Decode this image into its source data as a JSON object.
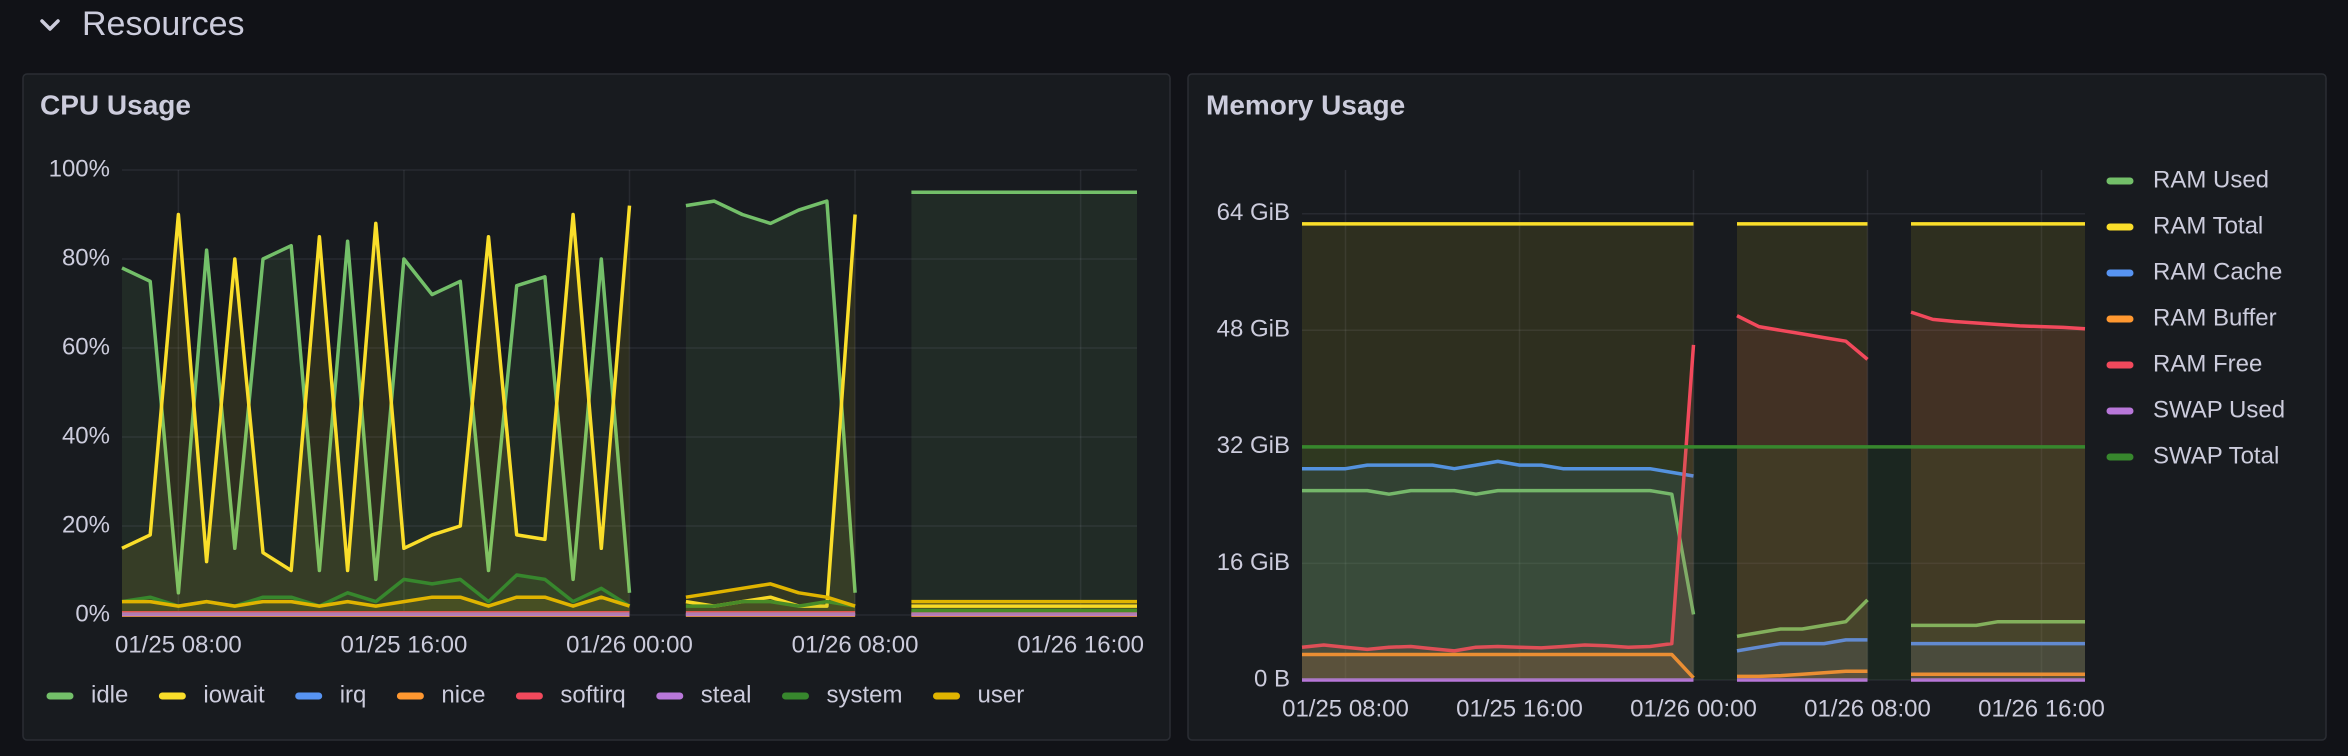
{
  "section": {
    "title": "Resources"
  },
  "chart_data": [
    {
      "type": "line",
      "title": "CPU Usage",
      "legend": "bottom",
      "grid": true,
      "x": [
        "01/25 06:00",
        "01/25 07:00",
        "01/25 08:00",
        "01/25 09:00",
        "01/25 10:00",
        "01/25 11:00",
        "01/25 12:00",
        "01/25 13:00",
        "01/25 14:00",
        "01/25 15:00",
        "01/25 16:00",
        "01/25 17:00",
        "01/25 18:00",
        "01/25 19:00",
        "01/25 20:00",
        "01/25 21:00",
        "01/25 22:00",
        "01/25 23:00",
        "01/26 00:00",
        "01/26 01:00",
        "01/26 02:00",
        "01/26 03:00",
        "01/26 04:00",
        "01/26 05:00",
        "01/26 06:00",
        "01/26 07:00",
        "01/26 08:00",
        "01/26 09:00",
        "01/26 10:00",
        "01/26 11:00",
        "01/26 12:00",
        "01/26 13:00",
        "01/26 14:00",
        "01/26 15:00",
        "01/26 16:00",
        "01/26 17:00",
        "01/26 18:00"
      ],
      "xticks": [
        "01/25 08:00",
        "01/25 16:00",
        "01/26 00:00",
        "01/26 08:00",
        "01/26 16:00"
      ],
      "ylim": [
        0,
        100
      ],
      "yticks": [
        {
          "value": 0,
          "label": "0%"
        },
        {
          "value": 20,
          "label": "20%"
        },
        {
          "value": 40,
          "label": "40%"
        },
        {
          "value": 60,
          "label": "60%"
        },
        {
          "value": 80,
          "label": "80%"
        },
        {
          "value": 100,
          "label": "100%"
        }
      ],
      "series": [
        {
          "name": "idle",
          "color": "#73bf69",
          "values": [
            78,
            75,
            5,
            82,
            15,
            80,
            83,
            10,
            84,
            8,
            80,
            72,
            75,
            10,
            74,
            76,
            8,
            80,
            5,
            null,
            92,
            93,
            90,
            88,
            91,
            93,
            5,
            null,
            95,
            95,
            95,
            95,
            95,
            95,
            95,
            95,
            95
          ]
        },
        {
          "name": "iowait",
          "color": "#fade2a",
          "values": [
            15,
            18,
            90,
            12,
            80,
            14,
            10,
            85,
            10,
            88,
            15,
            18,
            20,
            85,
            18,
            17,
            90,
            15,
            92,
            null,
            3,
            2,
            3,
            4,
            2,
            2,
            90,
            null,
            2,
            2,
            2,
            2,
            2,
            2,
            2,
            2,
            2
          ]
        },
        {
          "name": "irq",
          "color": "#5794f2",
          "values": [
            0,
            0,
            0,
            0,
            0,
            0,
            0,
            0,
            0,
            0,
            0,
            0,
            0,
            0,
            0,
            0,
            0,
            0,
            0,
            null,
            0,
            0,
            0,
            0,
            0,
            0,
            0,
            null,
            0,
            0,
            0,
            0,
            0,
            0,
            0,
            0,
            0
          ]
        },
        {
          "name": "nice",
          "color": "#ff9830",
          "values": [
            0,
            0,
            0,
            0,
            0,
            0,
            0,
            0,
            0,
            0,
            0,
            0,
            0,
            0,
            0,
            0,
            0,
            0,
            0,
            null,
            0,
            0,
            0,
            0,
            0,
            0,
            0,
            null,
            0,
            0,
            0,
            0,
            0,
            0,
            0,
            0,
            0
          ]
        },
        {
          "name": "softirq",
          "color": "#f2495c",
          "values": [
            0.5,
            0.5,
            0.5,
            0.5,
            0.5,
            0.5,
            0.5,
            0.5,
            0.5,
            0.5,
            0.5,
            0.5,
            0.5,
            0.5,
            0.5,
            0.5,
            0.5,
            0.5,
            0.5,
            null,
            0.5,
            0.5,
            0.5,
            0.5,
            0.5,
            0.5,
            0.5,
            null,
            0.5,
            0.5,
            0.5,
            0.5,
            0.5,
            0.5,
            0.5,
            0.5,
            0.5
          ]
        },
        {
          "name": "steal",
          "color": "#b877d9",
          "values": [
            0.2,
            0.2,
            0.2,
            0.2,
            0.2,
            0.2,
            0.2,
            0.2,
            0.2,
            0.2,
            0.2,
            0.2,
            0.2,
            0.2,
            0.2,
            0.2,
            0.2,
            0.2,
            0.2,
            null,
            0.2,
            0.2,
            0.2,
            0.2,
            0.2,
            0.2,
            0.2,
            null,
            0.2,
            0.2,
            0.2,
            0.2,
            0.2,
            0.2,
            0.2,
            0.2,
            0.2
          ]
        },
        {
          "name": "system",
          "color": "#37872d",
          "values": [
            3,
            4,
            2,
            3,
            2,
            4,
            4,
            2,
            5,
            3,
            8,
            7,
            8,
            3,
            9,
            8,
            3,
            6,
            2,
            null,
            2,
            2,
            3,
            3,
            2,
            3,
            2,
            null,
            1,
            1,
            1,
            1,
            1,
            1,
            1,
            1,
            1
          ]
        },
        {
          "name": "user",
          "color": "#e0b400",
          "values": [
            3,
            3,
            2,
            3,
            2,
            3,
            3,
            2,
            3,
            2,
            3,
            4,
            4,
            2,
            4,
            4,
            2,
            4,
            2,
            null,
            4,
            5,
            6,
            7,
            5,
            4,
            2,
            null,
            3,
            3,
            3,
            3,
            3,
            3,
            3,
            3,
            3
          ]
        }
      ]
    },
    {
      "type": "line",
      "title": "Memory Usage",
      "legend": "right",
      "grid": true,
      "x": [
        "01/25 06:00",
        "01/25 07:00",
        "01/25 08:00",
        "01/25 09:00",
        "01/25 10:00",
        "01/25 11:00",
        "01/25 12:00",
        "01/25 13:00",
        "01/25 14:00",
        "01/25 15:00",
        "01/25 16:00",
        "01/25 17:00",
        "01/25 18:00",
        "01/25 19:00",
        "01/25 20:00",
        "01/25 21:00",
        "01/25 22:00",
        "01/25 23:00",
        "01/26 00:00",
        "01/26 01:00",
        "01/26 02:00",
        "01/26 03:00",
        "01/26 04:00",
        "01/26 05:00",
        "01/26 06:00",
        "01/26 07:00",
        "01/26 08:00",
        "01/26 09:00",
        "01/26 10:00",
        "01/26 11:00",
        "01/26 12:00",
        "01/26 13:00",
        "01/26 14:00",
        "01/26 15:00",
        "01/26 16:00",
        "01/26 17:00",
        "01/26 18:00"
      ],
      "xticks": [
        "01/25 08:00",
        "01/25 16:00",
        "01/26 00:00",
        "01/26 08:00",
        "01/26 16:00"
      ],
      "ylim": [
        0,
        70
      ],
      "yticks": [
        {
          "value": 0,
          "label": "0 B"
        },
        {
          "value": 16,
          "label": "16 GiB"
        },
        {
          "value": 32,
          "label": "32 GiB"
        },
        {
          "value": 48,
          "label": "48 GiB"
        },
        {
          "value": 64,
          "label": "64 GiB"
        }
      ],
      "series": [
        {
          "name": "RAM Used",
          "color": "#73bf69",
          "values": [
            26,
            26,
            26,
            26,
            25.5,
            26,
            26,
            26,
            25.5,
            26,
            26,
            26,
            26,
            26,
            26,
            26,
            26,
            25.5,
            9,
            null,
            6,
            6.5,
            7,
            7,
            7.5,
            8,
            11,
            null,
            7.5,
            7.5,
            7.5,
            7.5,
            8,
            8,
            8,
            8,
            8
          ]
        },
        {
          "name": "RAM Total",
          "color": "#fade2a",
          "values": [
            62.6,
            62.6,
            62.6,
            62.6,
            62.6,
            62.6,
            62.6,
            62.6,
            62.6,
            62.6,
            62.6,
            62.6,
            62.6,
            62.6,
            62.6,
            62.6,
            62.6,
            62.6,
            62.6,
            null,
            62.6,
            62.6,
            62.6,
            62.6,
            62.6,
            62.6,
            62.6,
            null,
            62.6,
            62.6,
            62.6,
            62.6,
            62.6,
            62.6,
            62.6,
            62.6,
            62.6
          ]
        },
        {
          "name": "RAM Cache",
          "color": "#5794f2",
          "values": [
            29,
            29,
            29,
            29.5,
            29.5,
            29.5,
            29.5,
            29,
            29.5,
            30,
            29.5,
            29.5,
            29,
            29,
            29,
            29,
            29,
            28.5,
            28,
            null,
            4,
            4.5,
            5,
            5,
            5,
            5.5,
            5.5,
            null,
            5,
            5,
            5,
            5,
            5,
            5,
            5,
            5,
            5
          ]
        },
        {
          "name": "RAM Buffer",
          "color": "#ff9830",
          "values": [
            3.5,
            3.5,
            3.5,
            3.5,
            3.5,
            3.5,
            3.5,
            3.5,
            3.5,
            3.5,
            3.5,
            3.5,
            3.5,
            3.5,
            3.5,
            3.5,
            3.5,
            3.5,
            0.3,
            null,
            0.5,
            0.5,
            0.6,
            0.8,
            1,
            1.2,
            1.2,
            null,
            0.8,
            0.8,
            0.8,
            0.8,
            0.8,
            0.8,
            0.8,
            0.8,
            0.8
          ]
        },
        {
          "name": "RAM Free",
          "color": "#f2495c",
          "values": [
            4.5,
            4.8,
            4.5,
            4.2,
            4.5,
            4.6,
            4.3,
            4,
            4.5,
            4.6,
            4.5,
            4.4,
            4.6,
            4.8,
            4.7,
            4.5,
            4.6,
            5,
            46,
            null,
            50,
            48.5,
            48,
            47.5,
            47,
            46.5,
            44,
            null,
            50.5,
            49.5,
            49.2,
            49,
            48.8,
            48.6,
            48.5,
            48.4,
            48.2
          ]
        },
        {
          "name": "SWAP Used",
          "color": "#b877d9",
          "values": [
            0,
            0,
            0,
            0,
            0,
            0,
            0,
            0,
            0,
            0,
            0,
            0,
            0,
            0,
            0,
            0,
            0,
            0,
            0,
            null,
            0,
            0,
            0,
            0,
            0,
            0,
            0,
            null,
            0,
            0,
            0,
            0,
            0,
            0,
            0,
            0,
            0
          ]
        },
        {
          "name": "SWAP Total",
          "color": "#37872d",
          "values": [
            32,
            32,
            32,
            32,
            32,
            32,
            32,
            32,
            32,
            32,
            32,
            32,
            32,
            32,
            32,
            32,
            32,
            32,
            32,
            32,
            32,
            32,
            32,
            32,
            32,
            32,
            32,
            32,
            32,
            32,
            32,
            32,
            32,
            32,
            32,
            32,
            32
          ]
        }
      ]
    }
  ]
}
